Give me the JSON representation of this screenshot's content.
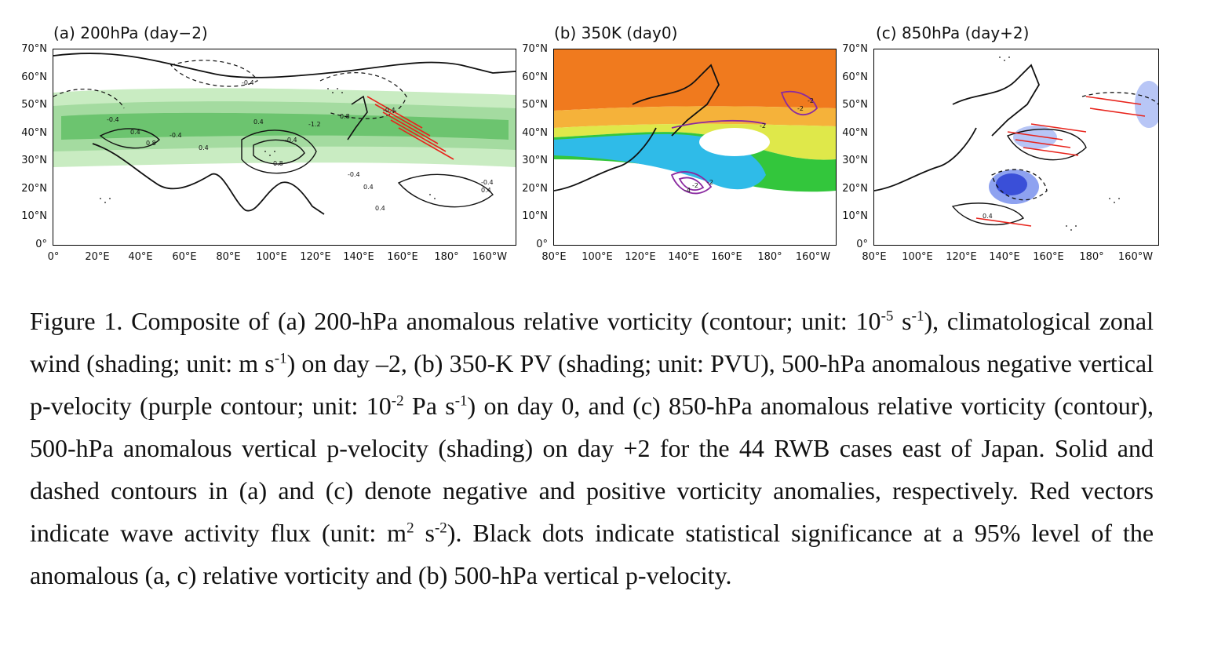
{
  "panels": [
    {
      "id": "a",
      "title": "(a) 200hPa (day−2)",
      "xticks": [
        "0°",
        "20°E",
        "40°E",
        "60°E",
        "80°E",
        "100°E",
        "120°E",
        "140°E",
        "160°E",
        "180°",
        "160°W"
      ],
      "contour_labels": [
        "-0.4",
        "0.4",
        "-0.4",
        "-0.4",
        "0.8",
        "0.4",
        "-0.4",
        "0.4",
        "0.8",
        "-1.2",
        "0.8",
        "-0.4",
        "-0.4",
        "0.4",
        "-0.4",
        "0.4",
        "0.4"
      ]
    },
    {
      "id": "b",
      "title": "(b) 350K (day0)",
      "xticks": [
        "80°E",
        "100°E",
        "120°E",
        "140°E",
        "160°E",
        "180°",
        "160°W"
      ],
      "contour_labels": [
        "-2",
        "-2",
        "-2",
        "-2",
        "-4",
        "-2"
      ]
    },
    {
      "id": "c",
      "title": "(c) 850hPa (day+2)",
      "xticks": [
        "80°E",
        "100°E",
        "120°E",
        "140°E",
        "160°E",
        "180°",
        "160°W"
      ],
      "contour_labels": [
        "0.4"
      ]
    }
  ],
  "yticks": [
    "70°N",
    "60°N",
    "50°N",
    "40°N",
    "30°N",
    "20°N",
    "10°N",
    "0°"
  ],
  "colors": {
    "zonal_wind_green": "#6cc46f",
    "pv_orange": "#f07a1e",
    "pv_yellow": "#dfe84a",
    "pv_green": "#33c63c",
    "pv_cyan": "#2fbbe8",
    "omega_purple": "#8a2aa0",
    "omega_blue": "#3a4fd8",
    "vector_red": "#e8241c"
  },
  "caption": {
    "p1": "Figure 1. Composite of (a) 200-hPa anomalous relative vorticity (contour; unit: 10",
    "s1": "-5",
    "p2": " s",
    "s2": "-1",
    "p3": "), climatological zonal wind (shading; unit: m s",
    "s3": "-1",
    "p4": ") on day –2, (b) 350-K PV (shading; unit: PVU), 500-hPa anomalous negative vertical p-velocity (purple contour; unit: 10",
    "s4": "-2",
    "p5": " Pa s",
    "s5": "-1",
    "p6": ") on day 0, and (c) 850-hPa anomalous relative vorticity (contour), 500-hPa anomalous vertical p-velocity (shading) on day +2 for the 44 RWB cases east of Japan. Solid and dashed contours in (a) and (c) denote negative and positive vorticity anomalies, respectively. Red vectors indicate wave activity flux (unit: m",
    "s6": "2",
    "p7": " s",
    "s7": "-2",
    "p8": "). Black dots indicate statistical significance at a 95% level of the anomalous (a, c) relative vorticity and (b) 500-hPa vertical p-velocity."
  }
}
